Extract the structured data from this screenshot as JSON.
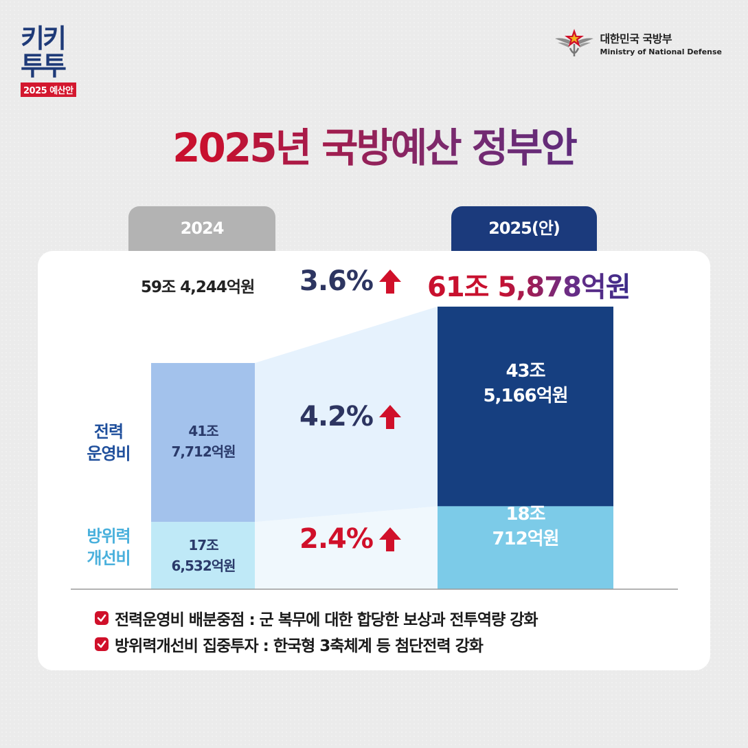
{
  "logo": {
    "line1": "키키",
    "line2": "투투",
    "sub": "2025 예산안"
  },
  "ministry": {
    "ko": "대한민국 국방부",
    "en": "Ministry of National Defense"
  },
  "title": "2025년 국방예산 정부안",
  "tabs": {
    "y2024": "2024",
    "y2025": "2025(안)"
  },
  "totals": {
    "y2024": "59조 4,244억원",
    "y2025": "61조 5,878억원",
    "growth": "3.6%"
  },
  "segments": {
    "ops": {
      "label_line1": "전력",
      "label_line2": "운영비",
      "y2024_line1": "41조",
      "y2024_line2": "7,712억원",
      "y2025_line1": "43조",
      "y2025_line2": "5,166억원",
      "growth": "4.2%"
    },
    "imp": {
      "label_line1": "방위력",
      "label_line2": "개선비",
      "y2024_line1": "17조",
      "y2024_line2": "6,532억원",
      "y2025_line1": "18조",
      "y2025_line2": "712억원",
      "growth": "2.4%"
    }
  },
  "notes": [
    "전력운영비 배분중점 : 군 복무에 대한 합당한 보상과 전투역량 강화",
    "방위력개선비 집중투자 : 한국형 3축체계 등 첨단전력 강화"
  ],
  "colors": {
    "ops2024": "#a3c2ec",
    "imp2024": "#bfe9f7",
    "ops2025": "#163f80",
    "imp2025": "#7ccbe8",
    "accent_red": "#d0102a",
    "navy": "#2d3561"
  },
  "chart_data": {
    "type": "bar",
    "stacked": true,
    "unit": "억원",
    "categories": [
      "2024",
      "2025(안)"
    ],
    "series": [
      {
        "name": "방위력 개선비",
        "values": [
          176532,
          180712
        ]
      },
      {
        "name": "전력 운영비",
        "values": [
          417712,
          435166
        ]
      }
    ],
    "totals": [
      594244,
      615878
    ],
    "growth": {
      "total": "3.6%",
      "전력 운영비": "4.2%",
      "방위력 개선비": "2.4%"
    }
  }
}
